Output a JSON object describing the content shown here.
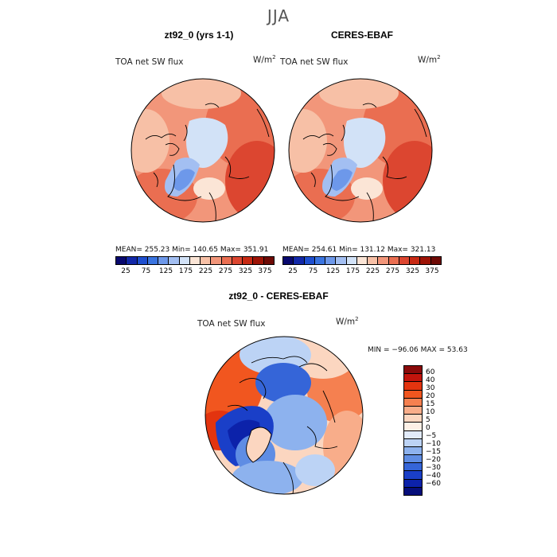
{
  "season": "JJA",
  "panels": {
    "model": {
      "title": "zt92_0 (yrs 1-1)",
      "variable": "TOA net SW flux",
      "units": "W/m",
      "units_exp": "2",
      "stats": "MEAN= 255.23   Min= 140.65   Max= 351.91"
    },
    "obs": {
      "title": "CERES-EBAF",
      "variable": "TOA net SW flux",
      "units": "W/m",
      "units_exp": "2",
      "stats": "MEAN= 254.61   Min= 131.12   Max= 321.13"
    },
    "diff": {
      "title": "zt92_0 - CERES-EBAF",
      "variable": "TOA net SW flux",
      "units": "W/m",
      "units_exp": "2",
      "stats": "MIN = −96.06 MAX =   53.63"
    }
  },
  "colorbar_abs": {
    "colors": [
      "#08086e",
      "#1228a8",
      "#1f4fcf",
      "#3a74e0",
      "#6d98ea",
      "#a3bff2",
      "#d2e2f7",
      "#fbe5d6",
      "#f7c0a6",
      "#f2967a",
      "#ea6e51",
      "#dc4630",
      "#c82a14",
      "#9e1406",
      "#6e0a05"
    ],
    "labels": [
      "25",
      "75",
      "125",
      "175",
      "225",
      "275",
      "325",
      "375"
    ]
  },
  "colorbar_diff": {
    "colors": [
      "#8a0a0a",
      "#c2140c",
      "#e3340f",
      "#f1561f",
      "#f58050",
      "#f8ad8a",
      "#fbd6c0",
      "#fdf0e6",
      "#e2ebfa",
      "#bcd3f5",
      "#8db2ee",
      "#5f8de4",
      "#3565d8",
      "#1a3fc8",
      "#0c22aa",
      "#060e7a"
    ],
    "labels": [
      "60",
      "40",
      "30",
      "20",
      "15",
      "10",
      "5",
      "0",
      "−5",
      "−10",
      "−15",
      "−20",
      "−30",
      "−40",
      "−60"
    ]
  }
}
